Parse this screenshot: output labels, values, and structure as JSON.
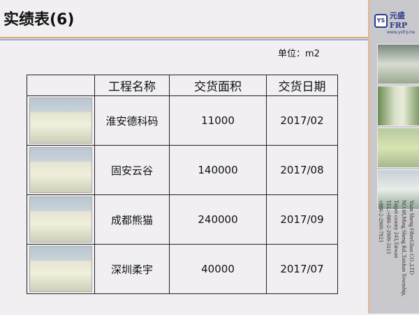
{
  "title": "实绩表(6)",
  "unit": "单位：m2",
  "table": {
    "headers": [
      "",
      "工程名称",
      "交货面积",
      "交货日期"
    ],
    "rows": [
      {
        "name": "淮安德科码",
        "area": "11000",
        "date": "2017/02"
      },
      {
        "name": "固安云谷",
        "area": "140000",
        "date": "2017/08"
      },
      {
        "name": "成都熊猫",
        "area": "240000",
        "date": "2017/09"
      },
      {
        "name": "深圳柔宇",
        "area": "40000",
        "date": "2017/07"
      }
    ]
  },
  "sidebar": {
    "logo_name": "元盛FRP",
    "logo_badge": "YS",
    "logo_url": "www.ysfrp.tw",
    "company": [
      "Yuan Sheng FiberGlass CO.,LTD",
      "NO.68,Ming Sheng Rd.,Taishan Township,",
      "Taipei county 243,Taiwan",
      "TEL:+886-2-2909-3113",
      "+886-2-2909-7923"
    ]
  },
  "colors": {
    "accent_orange": "#e0a060",
    "accent_blue": "#8aaee0",
    "logo": "#2a3a8a"
  }
}
